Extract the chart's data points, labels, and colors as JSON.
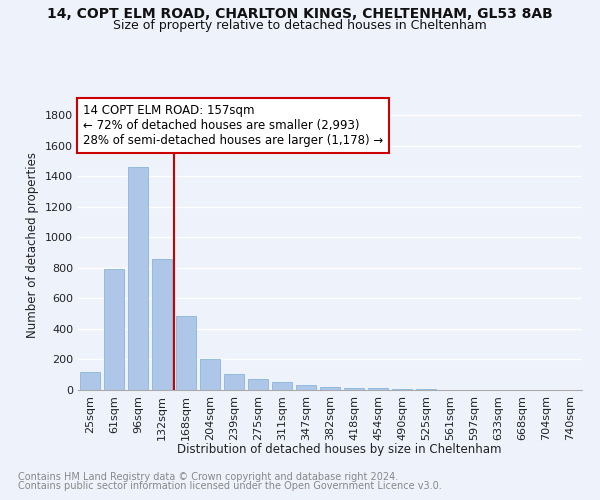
{
  "title1": "14, COPT ELM ROAD, CHARLTON KINGS, CHELTENHAM, GL53 8AB",
  "title2": "Size of property relative to detached houses in Cheltenham",
  "xlabel": "Distribution of detached houses by size in Cheltenham",
  "ylabel": "Number of detached properties",
  "footnote1": "Contains HM Land Registry data © Crown copyright and database right 2024.",
  "footnote2": "Contains public sector information licensed under the Open Government Licence v3.0.",
  "bar_labels": [
    "25sqm",
    "61sqm",
    "96sqm",
    "132sqm",
    "168sqm",
    "204sqm",
    "239sqm",
    "275sqm",
    "311sqm",
    "347sqm",
    "382sqm",
    "418sqm",
    "454sqm",
    "490sqm",
    "525sqm",
    "561sqm",
    "597sqm",
    "633sqm",
    "668sqm",
    "704sqm",
    "740sqm"
  ],
  "bar_values": [
    120,
    795,
    1460,
    860,
    485,
    200,
    105,
    70,
    50,
    35,
    22,
    15,
    10,
    7,
    5,
    3,
    2,
    2,
    1,
    1,
    0
  ],
  "bar_color": "#aec6e8",
  "bar_edge_color": "#7bafd4",
  "vline_color": "#cc0000",
  "annotation_line1": "14 COPT ELM ROAD: 157sqm",
  "annotation_line2": "← 72% of detached houses are smaller (2,993)",
  "annotation_line3": "28% of semi-detached houses are larger (1,178) →",
  "ylim": [
    0,
    1900
  ],
  "yticks": [
    0,
    200,
    400,
    600,
    800,
    1000,
    1200,
    1400,
    1600,
    1800
  ],
  "bg_color": "#eef2fb",
  "grid_color": "#ffffff",
  "title1_fontsize": 10,
  "title2_fontsize": 9,
  "annotation_fontsize": 8.5,
  "axis_label_fontsize": 8.5,
  "tick_fontsize": 8,
  "footnote_fontsize": 7
}
